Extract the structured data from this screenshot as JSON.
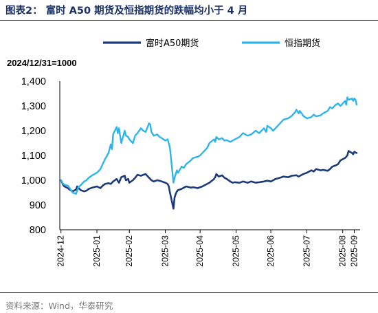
{
  "figure": {
    "title": "图表2：  富时 A50 期货及恒指期货的跌幅均小于 4 月",
    "source": "资料来源：Wind，华泰研究"
  },
  "chart_data": {
    "type": "line",
    "note": "2024/12/31=1000",
    "ylim": [
      800,
      1400
    ],
    "yticks": [
      "800",
      "900",
      "1,000",
      "1,100",
      "1,200",
      "1,300",
      "1,400"
    ],
    "xlim": [
      "2024-12-30",
      "2025-09-15"
    ],
    "xticks": [
      {
        "date": "2024-12-31",
        "label": "2024-12"
      },
      {
        "date": "2025-01-31",
        "label": "2025-01"
      },
      {
        "date": "2025-02-28",
        "label": "2025-02"
      },
      {
        "date": "2025-03-31",
        "label": "2025-03"
      },
      {
        "date": "2025-04-30",
        "label": "2025-04"
      },
      {
        "date": "2025-05-31",
        "label": "2025-05"
      },
      {
        "date": "2025-06-30",
        "label": "2025-06"
      },
      {
        "date": "2025-07-31",
        "label": "2025-07"
      },
      {
        "date": "2025-08-31",
        "label": "2025-08"
      },
      {
        "date": "2025-09-10",
        "label": "2025-09"
      }
    ],
    "legend_position": "top",
    "series": [
      {
        "name": "富时A50期货",
        "color": "#1a3a7a",
        "points": [
          [
            "2024-12-31",
            1000
          ],
          [
            "2025-01-02",
            980
          ],
          [
            "2025-01-03",
            975
          ],
          [
            "2025-01-06",
            968
          ],
          [
            "2025-01-08",
            960
          ],
          [
            "2025-01-10",
            955
          ],
          [
            "2025-01-13",
            962
          ],
          [
            "2025-01-14",
            975
          ],
          [
            "2025-01-15",
            970
          ],
          [
            "2025-01-17",
            960
          ],
          [
            "2025-01-20",
            955
          ],
          [
            "2025-01-22",
            958
          ],
          [
            "2025-01-24",
            965
          ],
          [
            "2025-01-27",
            970
          ],
          [
            "2025-01-31",
            975
          ],
          [
            "2025-02-03",
            968
          ],
          [
            "2025-02-05",
            978
          ],
          [
            "2025-02-07",
            985
          ],
          [
            "2025-02-10",
            988
          ],
          [
            "2025-02-12",
            985
          ],
          [
            "2025-02-14",
            995
          ],
          [
            "2025-02-17",
            1005
          ],
          [
            "2025-02-19",
            990
          ],
          [
            "2025-02-21",
            1012
          ],
          [
            "2025-02-24",
            1018
          ],
          [
            "2025-02-25",
            1000
          ],
          [
            "2025-02-27",
            1005
          ],
          [
            "2025-02-28",
            990
          ],
          [
            "2025-03-03",
            1000
          ],
          [
            "2025-03-05",
            1010
          ],
          [
            "2025-03-07",
            1022
          ],
          [
            "2025-03-10",
            1018
          ],
          [
            "2025-03-12",
            1022
          ],
          [
            "2025-03-14",
            1025
          ],
          [
            "2025-03-17",
            1010
          ],
          [
            "2025-03-19",
            1000
          ],
          [
            "2025-03-21",
            995
          ],
          [
            "2025-03-24",
            1000
          ],
          [
            "2025-03-26",
            998
          ],
          [
            "2025-03-28",
            995
          ],
          [
            "2025-03-31",
            990
          ],
          [
            "2025-04-02",
            985
          ],
          [
            "2025-04-03",
            975
          ],
          [
            "2025-04-04",
            950
          ],
          [
            "2025-04-07",
            885
          ],
          [
            "2025-04-08",
            930
          ],
          [
            "2025-04-09",
            945
          ],
          [
            "2025-04-10",
            955
          ],
          [
            "2025-04-11",
            960
          ],
          [
            "2025-04-14",
            965
          ],
          [
            "2025-04-16",
            970
          ],
          [
            "2025-04-18",
            975
          ],
          [
            "2025-04-22",
            970
          ],
          [
            "2025-04-24",
            972
          ],
          [
            "2025-04-28",
            968
          ],
          [
            "2025-04-30",
            972
          ],
          [
            "2025-05-02",
            975
          ],
          [
            "2025-05-06",
            985
          ],
          [
            "2025-05-08",
            990
          ],
          [
            "2025-05-12",
            1005
          ],
          [
            "2025-05-13",
            1012
          ],
          [
            "2025-05-14",
            1025
          ],
          [
            "2025-05-16",
            1015
          ],
          [
            "2025-05-19",
            1020
          ],
          [
            "2025-05-21",
            1010
          ],
          [
            "2025-05-23",
            1005
          ],
          [
            "2025-05-26",
            995
          ],
          [
            "2025-05-28",
            990
          ],
          [
            "2025-05-30",
            992
          ],
          [
            "2025-06-03",
            990
          ],
          [
            "2025-06-06",
            995
          ],
          [
            "2025-06-10",
            990
          ],
          [
            "2025-06-13",
            995
          ],
          [
            "2025-06-17",
            990
          ],
          [
            "2025-06-20",
            992
          ],
          [
            "2025-06-24",
            995
          ],
          [
            "2025-06-27",
            998
          ],
          [
            "2025-06-30",
            995
          ],
          [
            "2025-07-02",
            1000
          ],
          [
            "2025-07-04",
            1005
          ],
          [
            "2025-07-08",
            1010
          ],
          [
            "2025-07-11",
            1015
          ],
          [
            "2025-07-15",
            1012
          ],
          [
            "2025-07-18",
            1018
          ],
          [
            "2025-07-22",
            1020
          ],
          [
            "2025-07-24",
            1015
          ],
          [
            "2025-07-28",
            1025
          ],
          [
            "2025-07-31",
            1030
          ],
          [
            "2025-08-04",
            1040
          ],
          [
            "2025-08-06",
            1035
          ],
          [
            "2025-08-08",
            1045
          ],
          [
            "2025-08-12",
            1040
          ],
          [
            "2025-08-14",
            1042
          ],
          [
            "2025-08-18",
            1038
          ],
          [
            "2025-08-20",
            1045
          ],
          [
            "2025-08-22",
            1055
          ],
          [
            "2025-08-25",
            1060
          ],
          [
            "2025-08-27",
            1065
          ],
          [
            "2025-08-29",
            1080
          ],
          [
            "2025-09-02",
            1090
          ],
          [
            "2025-09-04",
            1100
          ],
          [
            "2025-09-05",
            1118
          ],
          [
            "2025-09-08",
            1110
          ],
          [
            "2025-09-09",
            1105
          ],
          [
            "2025-09-10",
            1115
          ],
          [
            "2025-09-11",
            1112
          ],
          [
            "2025-09-12",
            1110
          ]
        ]
      },
      {
        "name": "恒指期货",
        "color": "#2eb4e8",
        "points": [
          [
            "2024-12-31",
            1000
          ],
          [
            "2025-01-02",
            985
          ],
          [
            "2025-01-03",
            982
          ],
          [
            "2025-01-06",
            978
          ],
          [
            "2025-01-08",
            965
          ],
          [
            "2025-01-10",
            950
          ],
          [
            "2025-01-13",
            945
          ],
          [
            "2025-01-14",
            958
          ],
          [
            "2025-01-15",
            972
          ],
          [
            "2025-01-17",
            980
          ],
          [
            "2025-01-20",
            995
          ],
          [
            "2025-01-22",
            1000
          ],
          [
            "2025-01-24",
            1010
          ],
          [
            "2025-01-27",
            1020
          ],
          [
            "2025-01-31",
            1030
          ],
          [
            "2025-02-03",
            1045
          ],
          [
            "2025-02-05",
            1065
          ],
          [
            "2025-02-07",
            1085
          ],
          [
            "2025-02-10",
            1110
          ],
          [
            "2025-02-12",
            1145
          ],
          [
            "2025-02-13",
            1125
          ],
          [
            "2025-02-14",
            1185
          ],
          [
            "2025-02-17",
            1215
          ],
          [
            "2025-02-18",
            1190
          ],
          [
            "2025-02-19",
            1210
          ],
          [
            "2025-02-21",
            1150
          ],
          [
            "2025-02-24",
            1200
          ],
          [
            "2025-02-25",
            1180
          ],
          [
            "2025-02-27",
            1175
          ],
          [
            "2025-02-28",
            1165
          ],
          [
            "2025-03-03",
            1150
          ],
          [
            "2025-03-05",
            1180
          ],
          [
            "2025-03-07",
            1190
          ],
          [
            "2025-03-10",
            1210
          ],
          [
            "2025-03-12",
            1200
          ],
          [
            "2025-03-14",
            1195
          ],
          [
            "2025-03-17",
            1230
          ],
          [
            "2025-03-18",
            1225
          ],
          [
            "2025-03-19",
            1195
          ],
          [
            "2025-03-21",
            1180
          ],
          [
            "2025-03-24",
            1185
          ],
          [
            "2025-03-26",
            1175
          ],
          [
            "2025-03-28",
            1170
          ],
          [
            "2025-03-31",
            1160
          ],
          [
            "2025-04-02",
            1165
          ],
          [
            "2025-04-03",
            1150
          ],
          [
            "2025-04-04",
            1130
          ],
          [
            "2025-04-07",
            990
          ],
          [
            "2025-04-08",
            1010
          ],
          [
            "2025-04-09",
            1025
          ],
          [
            "2025-04-10",
            1040
          ],
          [
            "2025-04-11",
            1030
          ],
          [
            "2025-04-14",
            1055
          ],
          [
            "2025-04-16",
            1050
          ],
          [
            "2025-04-18",
            1065
          ],
          [
            "2025-04-22",
            1080
          ],
          [
            "2025-04-24",
            1090
          ],
          [
            "2025-04-28",
            1095
          ],
          [
            "2025-04-30",
            1100
          ],
          [
            "2025-05-02",
            1110
          ],
          [
            "2025-05-06",
            1130
          ],
          [
            "2025-05-08",
            1150
          ],
          [
            "2025-05-12",
            1165
          ],
          [
            "2025-05-13",
            1155
          ],
          [
            "2025-05-14",
            1175
          ],
          [
            "2025-05-16",
            1165
          ],
          [
            "2025-05-19",
            1170
          ],
          [
            "2025-05-21",
            1160
          ],
          [
            "2025-05-23",
            1162
          ],
          [
            "2025-05-26",
            1155
          ],
          [
            "2025-05-28",
            1160
          ],
          [
            "2025-05-30",
            1165
          ],
          [
            "2025-06-03",
            1175
          ],
          [
            "2025-06-06",
            1190
          ],
          [
            "2025-06-10",
            1180
          ],
          [
            "2025-06-13",
            1185
          ],
          [
            "2025-06-17",
            1200
          ],
          [
            "2025-06-20",
            1190
          ],
          [
            "2025-06-24",
            1210
          ],
          [
            "2025-06-26",
            1195
          ],
          [
            "2025-06-27",
            1220
          ],
          [
            "2025-06-30",
            1210
          ],
          [
            "2025-07-02",
            1200
          ],
          [
            "2025-07-04",
            1210
          ],
          [
            "2025-07-08",
            1230
          ],
          [
            "2025-07-11",
            1245
          ],
          [
            "2025-07-15",
            1250
          ],
          [
            "2025-07-18",
            1260
          ],
          [
            "2025-07-21",
            1275
          ],
          [
            "2025-07-22",
            1285
          ],
          [
            "2025-07-24",
            1270
          ],
          [
            "2025-07-25",
            1280
          ],
          [
            "2025-07-28",
            1260
          ],
          [
            "2025-07-31",
            1250
          ],
          [
            "2025-08-04",
            1255
          ],
          [
            "2025-08-06",
            1265
          ],
          [
            "2025-08-08",
            1258
          ],
          [
            "2025-08-12",
            1262
          ],
          [
            "2025-08-14",
            1270
          ],
          [
            "2025-08-18",
            1280
          ],
          [
            "2025-08-20",
            1295
          ],
          [
            "2025-08-22",
            1290
          ],
          [
            "2025-08-25",
            1305
          ],
          [
            "2025-08-27",
            1310
          ],
          [
            "2025-08-29",
            1300
          ],
          [
            "2025-09-01",
            1315
          ],
          [
            "2025-09-02",
            1320
          ],
          [
            "2025-09-03",
            1305
          ],
          [
            "2025-09-04",
            1335
          ],
          [
            "2025-09-05",
            1325
          ],
          [
            "2025-09-08",
            1330
          ],
          [
            "2025-09-09",
            1320
          ],
          [
            "2025-09-10",
            1330
          ],
          [
            "2025-09-11",
            1325
          ],
          [
            "2025-09-12",
            1305
          ]
        ]
      }
    ]
  }
}
